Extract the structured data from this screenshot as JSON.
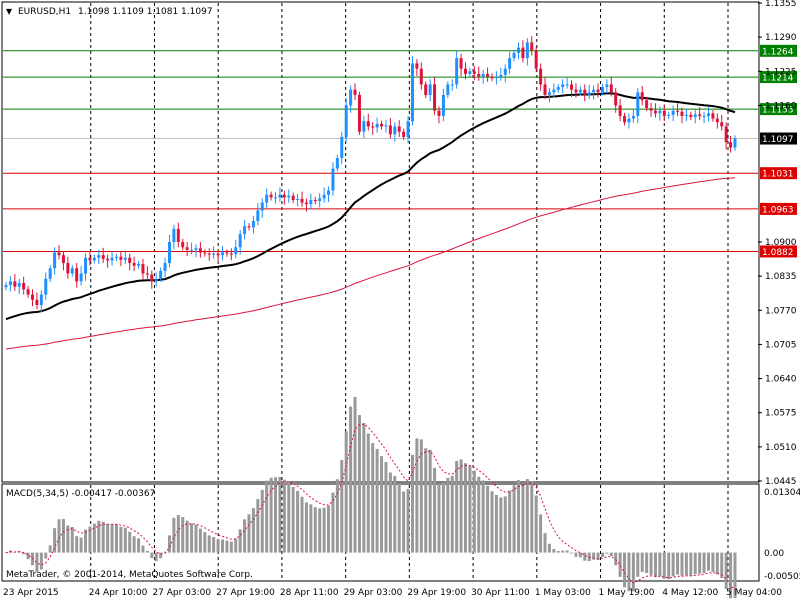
{
  "header": {
    "symbol": "EURUSD,H1",
    "ohlc": "1.1098 1.1109 1.1081 1.1097"
  },
  "macd": {
    "label": "MACD(5,34,5) -0.00417 -0.00367",
    "ticks": [
      "0.01304",
      "0.00",
      "-0.00505"
    ]
  },
  "copyright": "MetaTrader, © 2001-2014, MetaQuotes Software Corp.",
  "colors": {
    "background": "#ffffff",
    "candle_up": "#1e90ff",
    "candle_down": "#dc143c",
    "ma_fast": "#000000",
    "ma_slow": "#dc143c",
    "support_line": "#dc0000",
    "resistance_line": "#008000",
    "macd_hist": "#999999",
    "macd_signal": "#dc143c"
  },
  "chart_data": {
    "type": "candlestick",
    "title": "EURUSD,H1",
    "ylim": [
      1.0445,
      1.1355
    ],
    "y_ticks": [
      "1.1355",
      "1.1290",
      "1.1225",
      "1.1160",
      "1.0900",
      "1.0835",
      "1.0770",
      "1.0705",
      "1.0640",
      "1.0575",
      "1.0510",
      "1.0445"
    ],
    "x_ticks": [
      "23 Apr 2015",
      "24 Apr 10:00",
      "27 Apr 03:00",
      "27 Apr 19:00",
      "28 Apr 11:00",
      "29 Apr 03:00",
      "29 Apr 19:00",
      "30 Apr 11:00",
      "1 May 03:00",
      "1 May 19:00",
      "4 May 12:00",
      "5 May 04:00"
    ],
    "levels": [
      {
        "value": 1.1264,
        "label": "1.1264",
        "kind": "resistance"
      },
      {
        "value": 1.1214,
        "label": "1.1214",
        "kind": "resistance"
      },
      {
        "value": 1.1153,
        "label": "1.1153",
        "kind": "resistance"
      },
      {
        "value": 1.1031,
        "label": "1.1031",
        "kind": "support"
      },
      {
        "value": 1.0963,
        "label": "1.0963",
        "kind": "support"
      },
      {
        "value": 1.0882,
        "label": "1.0882",
        "kind": "support"
      }
    ],
    "current_price": {
      "value": 1.1097,
      "label": "1.1097"
    },
    "close": [
      1.0818,
      1.0825,
      1.0815,
      1.0822,
      1.081,
      1.08,
      1.079,
      1.078,
      1.08,
      1.083,
      1.085,
      1.088,
      1.0875,
      1.086,
      1.084,
      1.085,
      1.0825,
      1.084,
      1.087,
      1.0865,
      1.087,
      1.0875,
      1.0868,
      1.0865,
      1.087,
      1.0872,
      1.0866,
      1.087,
      1.086,
      1.0855,
      1.0858,
      1.084,
      1.0838,
      1.0825,
      1.083,
      1.0845,
      1.086,
      1.09,
      1.0925,
      1.09,
      1.089,
      1.0885,
      1.0885,
      1.0888,
      1.088,
      1.0878,
      1.0876,
      1.0878,
      1.0875,
      1.088,
      1.0878,
      1.0877,
      1.089,
      1.0915,
      1.093,
      1.0928,
      1.094,
      1.096,
      1.0975,
      1.099,
      1.0985,
      1.0985,
      1.099,
      1.0985,
      1.0988,
      1.098,
      1.0982,
      1.0975,
      1.0972,
      1.098,
      1.0978,
      1.0983,
      1.099,
      1.0998,
      1.104,
      1.106,
      1.11,
      1.116,
      1.119,
      1.118,
      1.111,
      1.113,
      1.112,
      1.1118,
      1.1125,
      1.112,
      1.1122,
      1.1105,
      1.112,
      1.111,
      1.11,
      1.113,
      1.124,
      1.123,
      1.12,
      1.118,
      1.12,
      1.115,
      1.114,
      1.118,
      1.12,
      1.12,
      1.125,
      1.123,
      1.122,
      1.1225,
      1.122,
      1.1215,
      1.122,
      1.1215,
      1.1212,
      1.1215,
      1.1218,
      1.123,
      1.125,
      1.126,
      1.127,
      1.125,
      1.128,
      1.1265,
      1.123,
      1.12,
      1.118,
      1.1185,
      1.119,
      1.1195,
      1.12,
      1.12,
      1.119,
      1.1185,
      1.119,
      1.118,
      1.1185,
      1.119,
      1.1185,
      1.1195,
      1.12,
      1.1185,
      1.116,
      1.114,
      1.1128,
      1.1135,
      1.114,
      1.1185,
      1.117,
      1.1155,
      1.115,
      1.1145,
      1.115,
      1.114,
      1.1142,
      1.115,
      1.1148,
      1.114,
      1.1142,
      1.1138,
      1.1143,
      1.114,
      1.114,
      1.1145,
      1.1135,
      1.1128,
      1.112,
      1.109,
      1.108,
      1.1097
    ],
    "ma_fast": {
      "name": "",
      "period_note": "",
      "start": 1.075,
      "end": 1.1153
    },
    "ma_slow": {
      "start": 1.0695,
      "end": 1.0995
    },
    "macd_ylim": [
      -0.00505,
      0.01304
    ]
  }
}
